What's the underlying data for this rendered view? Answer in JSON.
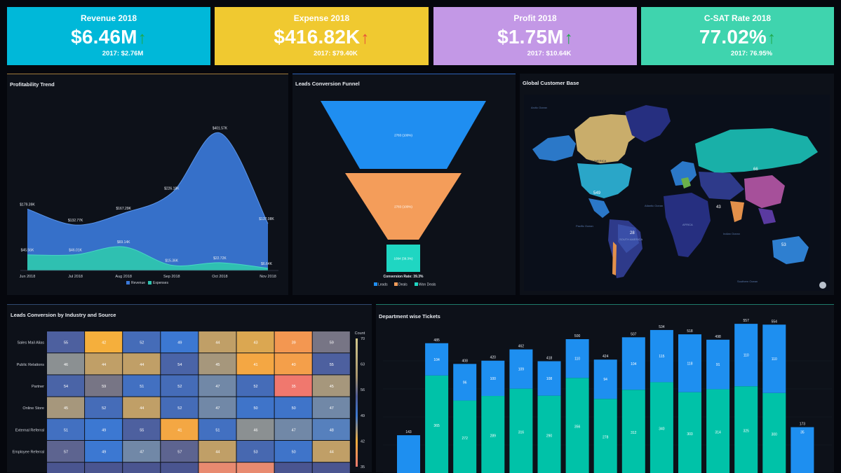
{
  "kpis": [
    {
      "title": "Revenue 2018",
      "value": "$6.46M",
      "prev": "2017: $2.76M",
      "arrow": "↑",
      "color": "#00b8d9",
      "arrow_color": "#1ea84a"
    },
    {
      "title": "Expense 2018",
      "value": "$416.82K",
      "prev": "2017: $79.40K",
      "arrow": "↑",
      "color": "#f0c930",
      "arrow_color": "#e8503a"
    },
    {
      "title": "Profit 2018",
      "value": "$1.75M",
      "prev": "2017: $10.64K",
      "arrow": "↑",
      "color": "#c398e6",
      "arrow_color": "#1ea84a"
    },
    {
      "title": "C-SAT Rate 2018",
      "value": "77.02%",
      "prev": "2017: 76.95%",
      "arrow": "↑",
      "color": "#3fd4ae",
      "arrow_color": "#1ea84a"
    }
  ],
  "panels": {
    "profitability": "Profitability Trend",
    "funnel": "Leads Conversion Funnel",
    "map": "Global Customer Base",
    "heatmap": "Leads Conversion by Industry and Source",
    "tickets": "Department wise Tickets"
  },
  "chart_data": [
    {
      "type": "area",
      "title": "Profitability Trend",
      "categories": [
        "Jun 2018",
        "Jul 2018",
        "Aug 2018",
        "Sep 2018",
        "Oct 2018",
        "Nov 2018"
      ],
      "series": [
        {
          "name": "Revenue",
          "values": [
            179.39,
            132.77,
            167.29,
            226.18,
            401.57,
            137.08
          ],
          "labels": [
            "$179.39K",
            "$132.77K",
            "$167.29K",
            "$226.18K",
            "$401.57K",
            "$137.08K"
          ],
          "color": "#3a78d8"
        },
        {
          "name": "Expenses",
          "values": [
            45.56,
            46.01,
            69.14,
            15.36,
            22.72,
            6.64
          ],
          "labels": [
            "$45.56K",
            "$46.01K",
            "$69.14K",
            "$15.36K",
            "$22.72K",
            "$6.64K"
          ],
          "color": "#2fc4b0"
        }
      ],
      "ylim": [
        0,
        450
      ]
    },
    {
      "type": "funnel",
      "title": "Leads Conversion Funnel",
      "stages": [
        {
          "name": "Leads",
          "value": 2783,
          "label": "2783 (100%)",
          "color": "#1f8ef1"
        },
        {
          "name": "Deals",
          "value": 2783,
          "label": "2783 (100%)",
          "color": "#f49d5a"
        },
        {
          "name": "Won Deals",
          "value": 1094,
          "label": "1094 (39.3%)",
          "color": "#1fd6c2"
        }
      ],
      "caption": "Conversion Rate: 39.3%"
    },
    {
      "type": "map",
      "title": "Global Customer Base",
      "region_labels": [
        "NORTH AMERICA",
        "SOUTH AMERICA",
        "AFRICA",
        "Pacific Ocean",
        "Atlantic Ocean",
        "Indian Ocean",
        "Southern Ocean",
        "Arctic Ocean"
      ],
      "values": [
        {
          "label": "549",
          "color": "#2aa6c8"
        },
        {
          "label": "66",
          "color": "#19b0a8"
        },
        {
          "label": "28",
          "color": "#2e3a8a"
        },
        {
          "label": "53",
          "color": "#2e7fd0"
        },
        {
          "label": "43",
          "color": "#5a3aa0"
        }
      ]
    },
    {
      "type": "heatmap",
      "title": "Leads Conversion by Industry and Source",
      "rows": [
        "Sales Mail Alias",
        "Public Relations",
        "Partner",
        "Online Store",
        "External Referral",
        "Employee Referral"
      ],
      "values": [
        [
          55,
          42,
          52,
          49,
          44,
          43,
          39,
          59
        ],
        [
          46,
          44,
          44,
          54,
          45,
          41,
          40,
          55
        ],
        [
          54,
          59,
          51,
          52,
          47,
          52,
          35,
          45
        ],
        [
          45,
          52,
          44,
          52,
          47,
          50,
          50,
          47
        ],
        [
          51,
          49,
          55,
          41,
          51,
          46,
          47,
          48
        ],
        [
          57,
          49,
          47,
          57,
          44,
          53,
          50,
          44
        ]
      ],
      "legend": {
        "title": "Count",
        "ticks": [
          70,
          63,
          56,
          49,
          42,
          35
        ]
      }
    },
    {
      "type": "bar",
      "title": "Department wise Tickets",
      "totals": [
        143,
        485,
        408,
        420,
        462,
        418,
        500,
        424,
        507,
        534,
        518,
        498,
        557,
        554,
        173
      ],
      "series": [
        {
          "name": "Base",
          "values": [
            null,
            365,
            272,
            289,
            316,
            290,
            356,
            278,
            312,
            340,
            303,
            314,
            325,
            300,
            null
          ],
          "color": "#00c2a8"
        },
        {
          "name": "Top",
          "values": [
            null,
            104,
            96,
            100,
            109,
            108,
            110,
            94,
            104,
            115,
            118,
            91,
            110,
            110,
            35
          ],
          "color": "#1e8ff0"
        }
      ]
    }
  ]
}
